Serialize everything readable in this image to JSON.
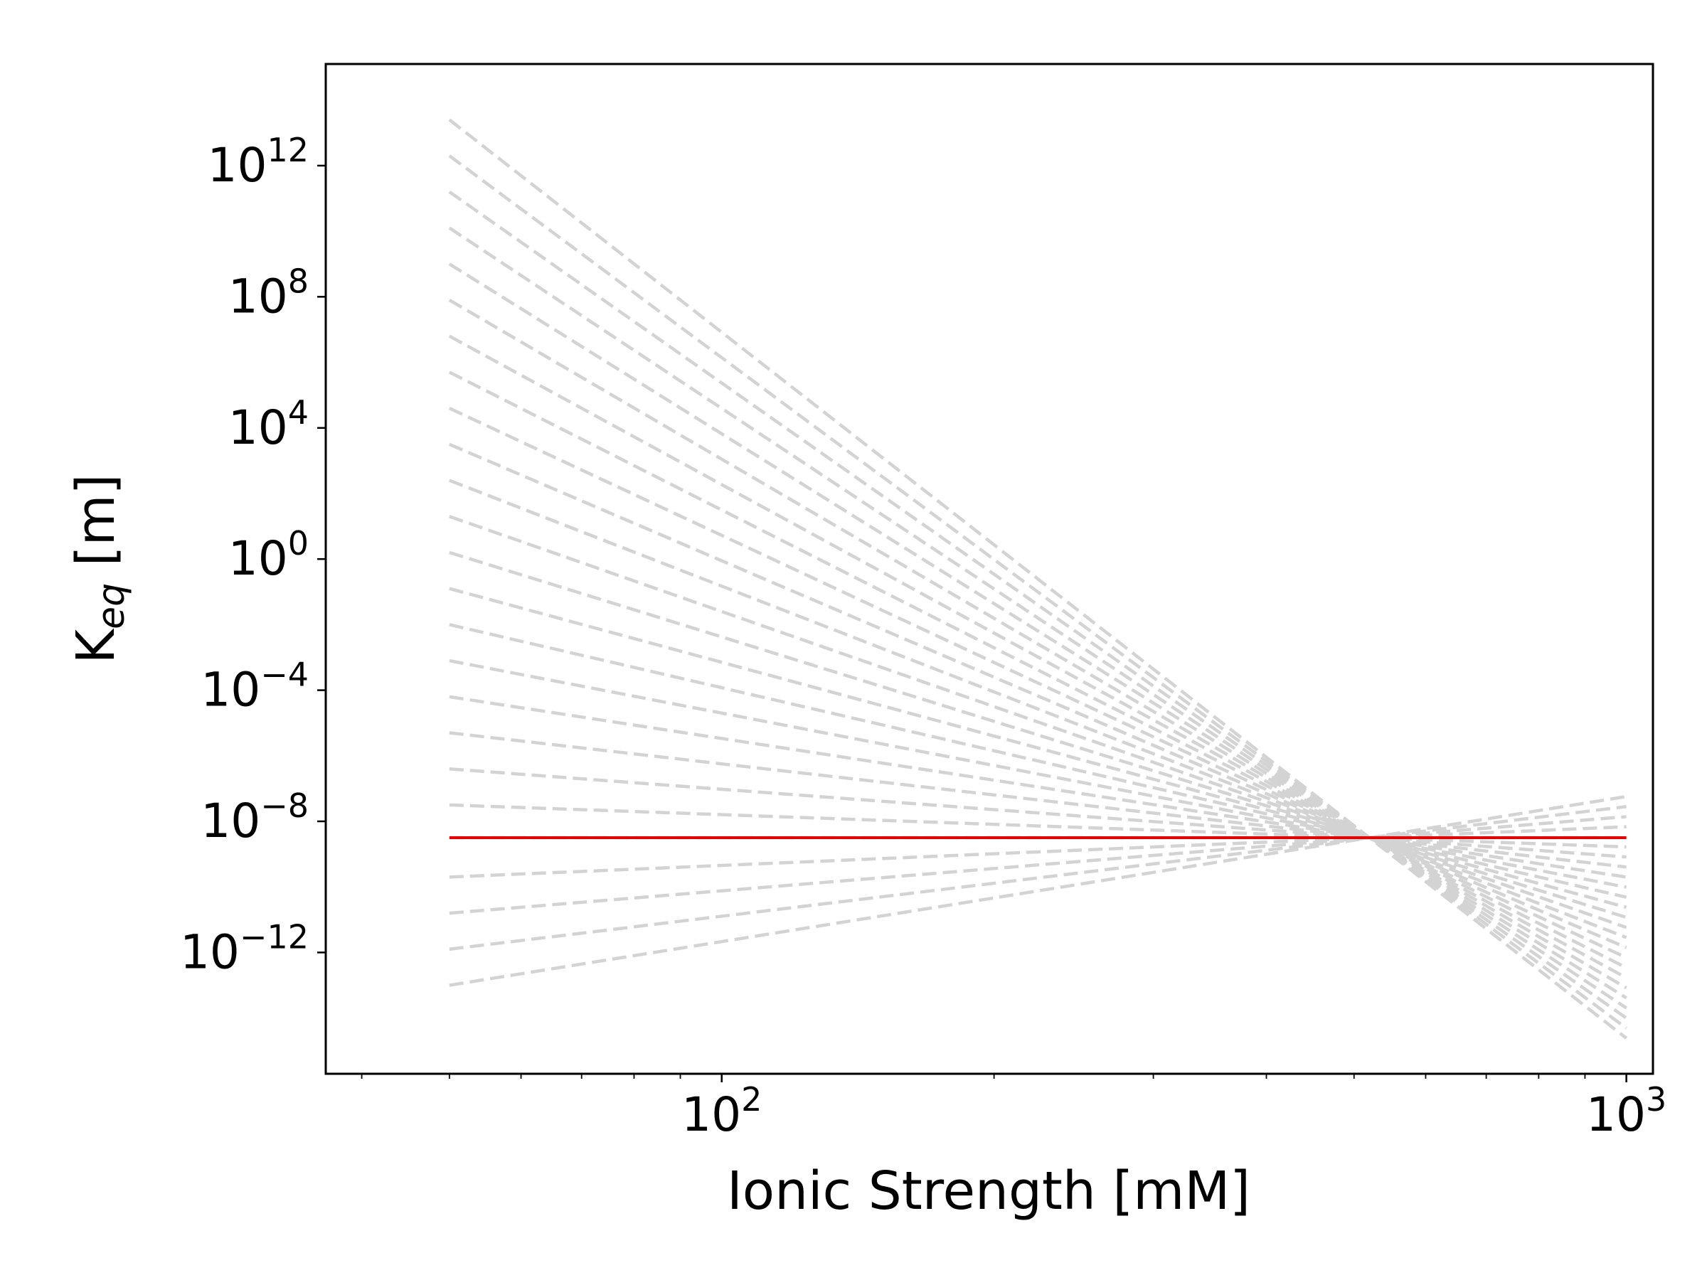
{
  "chart_data": {
    "type": "line",
    "xlabel": "Ionic Strength [mM]",
    "ylabel_main": "K",
    "ylabel_sub": "eq",
    "ylabel_unit": " [m]",
    "xscale": "log",
    "yscale": "log",
    "xlim": [
      36.5,
      1070
    ],
    "ylim_exp": [
      -15.7,
      15.1
    ],
    "x_ticks": [
      {
        "value": 100,
        "base": "10",
        "exp": "2"
      },
      {
        "value": 1000,
        "base": "10",
        "exp": "3"
      }
    ],
    "y_ticks": [
      {
        "exp_value": 12,
        "base": "10",
        "exp": "12"
      },
      {
        "exp_value": 8,
        "base": "10",
        "exp": "8"
      },
      {
        "exp_value": 4,
        "base": "10",
        "exp": "4"
      },
      {
        "exp_value": 0,
        "base": "10",
        "exp": "0"
      },
      {
        "exp_value": -4,
        "base": "10",
        "exp": "−4"
      },
      {
        "exp_value": -8,
        "base": "10",
        "exp": "−8"
      },
      {
        "exp_value": -12,
        "base": "10",
        "exp": "−12"
      }
    ],
    "dashed_series": {
      "color": "#d3d3d3",
      "x_start": 50,
      "x_end": 1000,
      "pivot_x": 520,
      "pivot_log10_y": -8.5,
      "log10_y_at_x_start": [
        -13,
        -11.9,
        -10.8,
        -9.7,
        -8.5,
        -7.5,
        -6.4,
        -5.3,
        -4.2,
        -3.1,
        -2.0,
        -0.9,
        0.2,
        1.3,
        2.4,
        3.5,
        4.6,
        5.7,
        6.8,
        7.9,
        9.0,
        10.1,
        11.2,
        12.3,
        13.4
      ]
    },
    "reference_series": {
      "color": "#e00000",
      "x": [
        50,
        1000
      ],
      "log10_y": [
        -8.5,
        -8.5
      ]
    },
    "grid": false,
    "legend": "none"
  }
}
